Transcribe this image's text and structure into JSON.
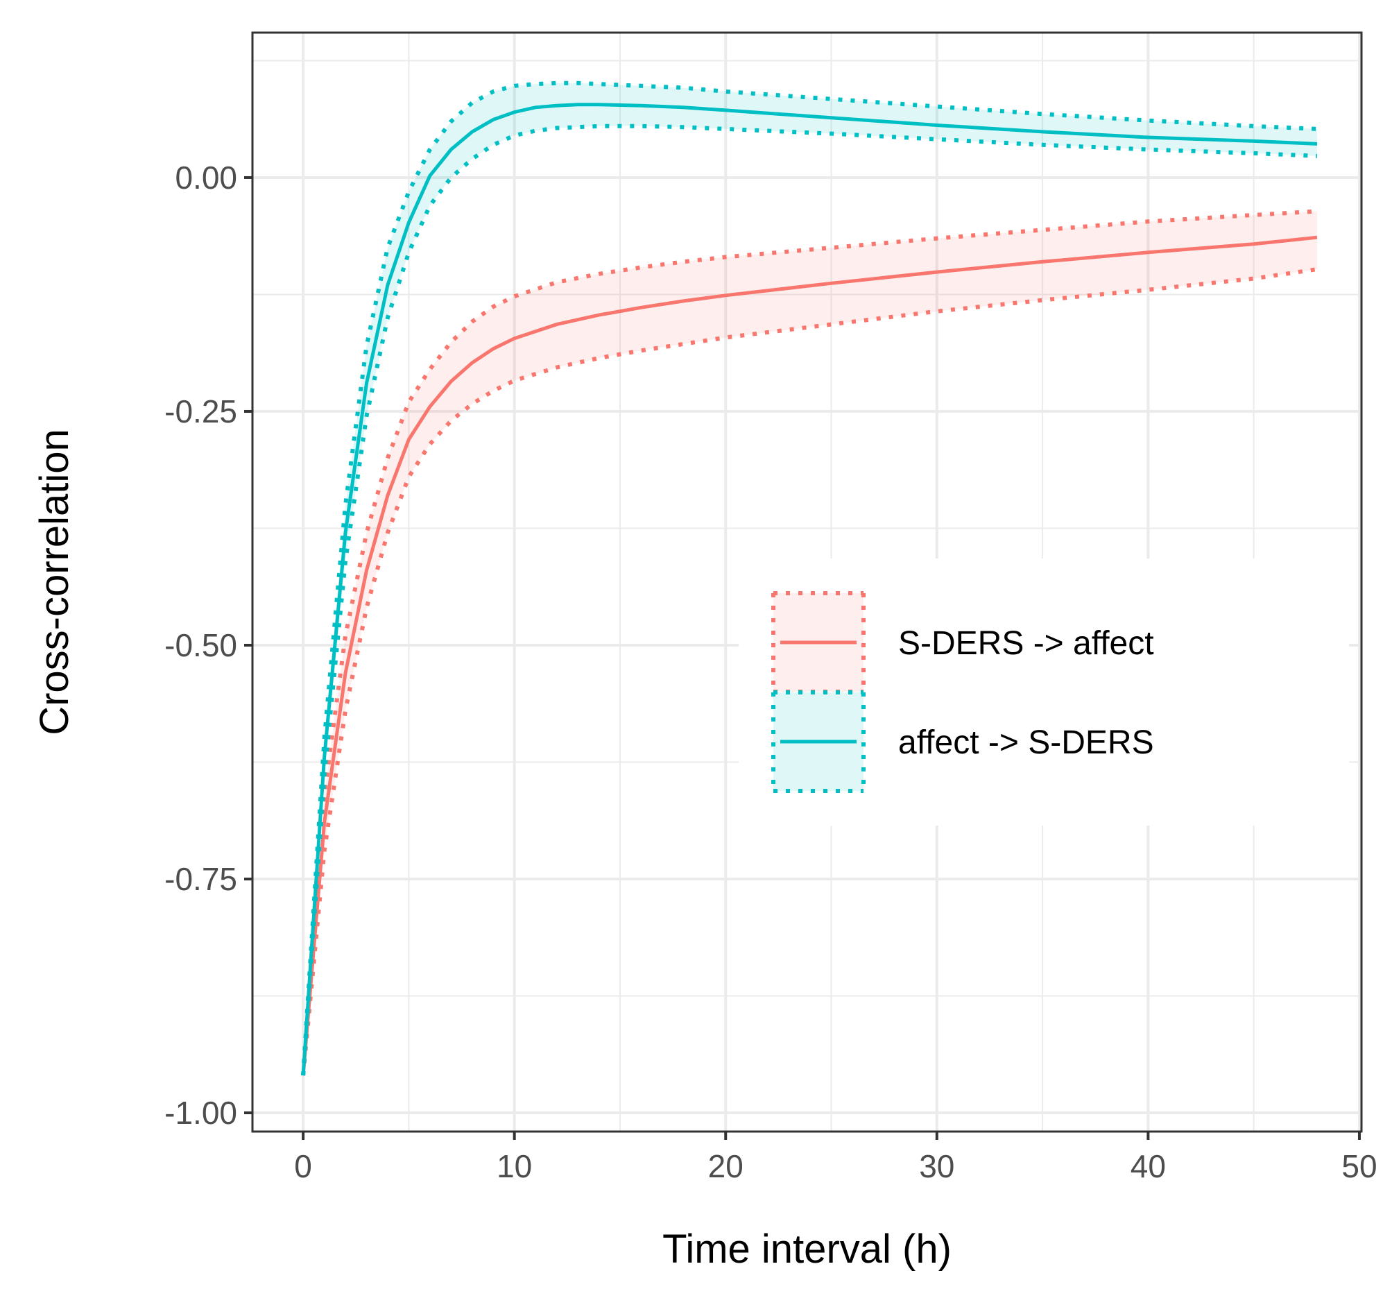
{
  "chart_data": {
    "type": "line",
    "title": "",
    "xlabel": "Time interval (h)",
    "ylabel": "Cross-correlation",
    "xlim": [
      -2.4,
      50.1
    ],
    "ylim": [
      -1.02,
      0.155
    ],
    "x_ticks": [
      0,
      10,
      20,
      30,
      40,
      50
    ],
    "x_tick_labels": [
      "0",
      "10",
      "20",
      "30",
      "40",
      "50"
    ],
    "y_ticks": [
      0.0,
      -0.25,
      -0.5,
      -0.75,
      -1.0
    ],
    "y_tick_labels": [
      "0.00",
      "-0.25",
      "-0.50",
      "-0.75",
      "-1.00"
    ],
    "grid": true,
    "legend_position": "right-center",
    "series": [
      {
        "name": "S-DERS -> affect",
        "color": "#F8766D",
        "x": [
          0,
          1,
          2,
          3,
          4,
          5,
          6,
          7,
          8,
          9,
          10,
          12,
          14,
          16,
          18,
          20,
          25,
          30,
          35,
          40,
          45,
          48
        ],
        "values": [
          -0.96,
          -0.69,
          -0.53,
          -0.42,
          -0.34,
          -0.28,
          -0.245,
          -0.218,
          -0.198,
          -0.183,
          -0.172,
          -0.157,
          -0.147,
          -0.139,
          -0.132,
          -0.126,
          -0.113,
          -0.101,
          -0.09,
          -0.08,
          -0.071,
          -0.064
        ],
        "lower": [
          -0.96,
          -0.72,
          -0.57,
          -0.46,
          -0.38,
          -0.32,
          -0.285,
          -0.26,
          -0.242,
          -0.228,
          -0.217,
          -0.203,
          -0.193,
          -0.185,
          -0.178,
          -0.171,
          -0.157,
          -0.143,
          -0.131,
          -0.12,
          -0.108,
          -0.098
        ],
        "upper": [
          -0.96,
          -0.66,
          -0.49,
          -0.38,
          -0.3,
          -0.24,
          -0.205,
          -0.176,
          -0.154,
          -0.138,
          -0.127,
          -0.112,
          -0.103,
          -0.096,
          -0.09,
          -0.085,
          -0.075,
          -0.065,
          -0.056,
          -0.047,
          -0.04,
          -0.036
        ]
      },
      {
        "name": "affect -> S-DERS",
        "color": "#00BFC4",
        "x": [
          0,
          1,
          2,
          3,
          4,
          5,
          6,
          7,
          8,
          9,
          10,
          11,
          12,
          13,
          14,
          16,
          18,
          20,
          25,
          30,
          35,
          40,
          45,
          48
        ],
        "values": [
          -0.96,
          -0.62,
          -0.38,
          -0.22,
          -0.115,
          -0.048,
          0.002,
          0.03,
          0.049,
          0.062,
          0.07,
          0.075,
          0.077,
          0.078,
          0.078,
          0.077,
          0.075,
          0.072,
          0.064,
          0.056,
          0.049,
          0.043,
          0.039,
          0.036
        ],
        "lower": [
          -0.96,
          -0.64,
          -0.41,
          -0.255,
          -0.15,
          -0.08,
          -0.03,
          0.0,
          0.02,
          0.035,
          0.045,
          0.05,
          0.053,
          0.054,
          0.055,
          0.055,
          0.054,
          0.052,
          0.047,
          0.041,
          0.035,
          0.03,
          0.026,
          0.023
        ],
        "upper": [
          -0.96,
          -0.6,
          -0.35,
          -0.18,
          -0.075,
          -0.015,
          0.03,
          0.06,
          0.08,
          0.092,
          0.098,
          0.1,
          0.101,
          0.101,
          0.1,
          0.098,
          0.096,
          0.092,
          0.084,
          0.076,
          0.068,
          0.061,
          0.055,
          0.052
        ]
      }
    ]
  }
}
